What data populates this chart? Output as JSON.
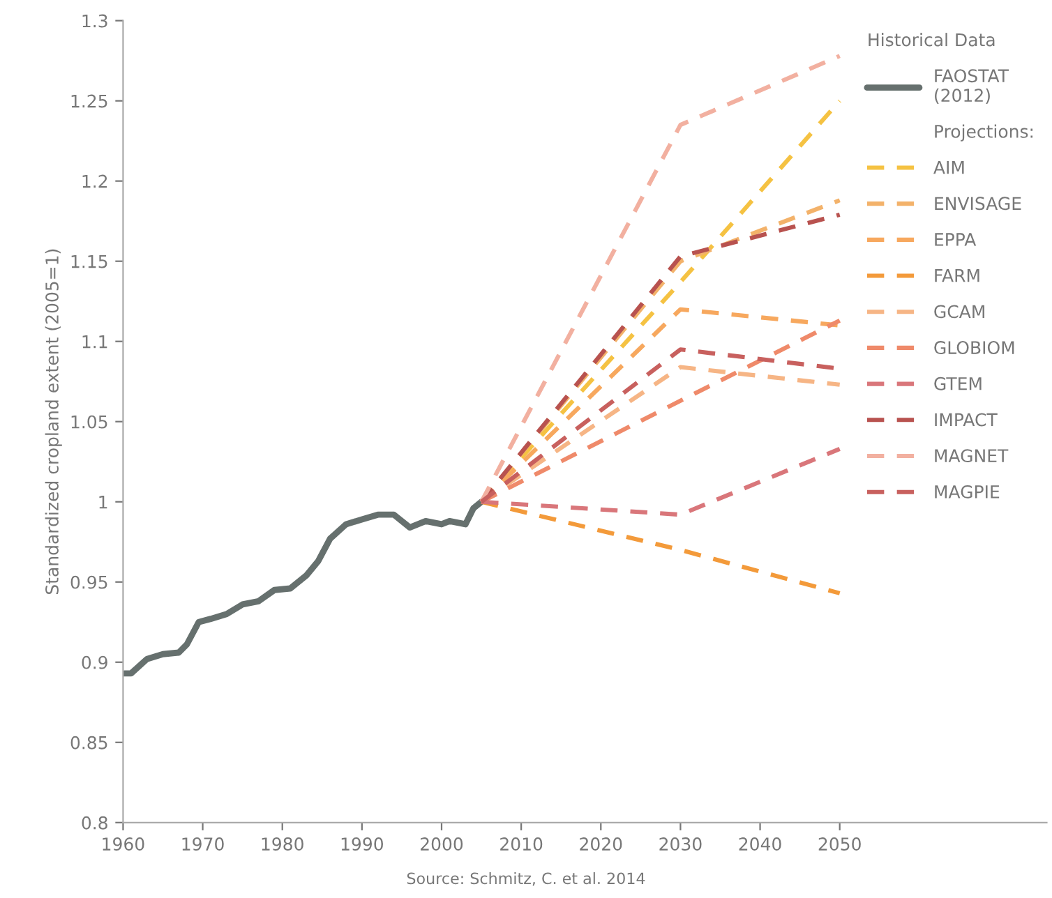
{
  "chart_data": {
    "type": "line",
    "ylabel": "Standardized cropland extent (2005=1)",
    "legend_title": "Historical Data",
    "legend": "top right",
    "grid": false,
    "marker": "none",
    "xlim": [
      1960,
      2076
    ],
    "xticks": [
      1960,
      1970,
      1980,
      1990,
      2000,
      2010,
      2020,
      2030,
      2040,
      2050
    ],
    "ylim": [
      0.8,
      1.3
    ],
    "yticks": [
      0.8,
      0.85,
      0.9,
      0.95,
      1,
      1.05,
      1.1,
      1.15,
      1.2,
      1.25,
      1.3
    ],
    "annotations": [
      "Projections:",
      "Source: Schmitz, C. et al. 2014"
    ],
    "series": [
      {
        "name": "FAOSTAT\n(2012)",
        "color": "#66706e",
        "line_style": "solid",
        "x": [
          1960.2,
          1961,
          1963,
          1965,
          1967,
          1968,
          1969.5,
          1971,
          1973,
          1975,
          1977,
          1979,
          1981,
          1983,
          1984.5,
          1986,
          1988,
          1990,
          1992,
          1994,
          1996,
          1998,
          2000,
          2001,
          2003,
          2004,
          2005
        ],
        "values": [
          0.893,
          0.893,
          0.902,
          0.905,
          0.906,
          0.911,
          0.925,
          0.927,
          0.93,
          0.936,
          0.938,
          0.945,
          0.946,
          0.954,
          0.963,
          0.977,
          0.986,
          0.989,
          0.992,
          0.992,
          0.984,
          0.988,
          0.986,
          0.988,
          0.986,
          0.996,
          1.0
        ]
      },
      {
        "name": "AIM",
        "color": "#f5c242",
        "line_style": "dashed",
        "x": [
          2005,
          2030,
          2050
        ],
        "values": [
          1.0,
          1.137,
          1.25
        ]
      },
      {
        "name": "ENVISAGE",
        "color": "#f3b26a",
        "line_style": "dashed",
        "x": [
          2005,
          2030,
          2050
        ],
        "values": [
          1.0,
          1.15,
          1.188
        ]
      },
      {
        "name": "EPPA",
        "color": "#f7a85e",
        "line_style": "dashed",
        "x": [
          2005,
          2030,
          2050
        ],
        "values": [
          1.0,
          1.12,
          1.11
        ]
      },
      {
        "name": "FARM",
        "color": "#f39a3a",
        "line_style": "dashed",
        "x": [
          2005,
          2030,
          2050
        ],
        "values": [
          1.0,
          0.97,
          0.943
        ]
      },
      {
        "name": "GCAM",
        "color": "#f6b585",
        "line_style": "dashed",
        "x": [
          2005,
          2030,
          2050
        ],
        "values": [
          1.0,
          1.084,
          1.073
        ]
      },
      {
        "name": "GLOBIOM",
        "color": "#ef8a6a",
        "line_style": "dashed",
        "x": [
          2005,
          2030,
          2050
        ],
        "values": [
          1.0,
          1.063,
          1.113
        ]
      },
      {
        "name": "GTEM",
        "color": "#d9767a",
        "line_style": "dashed",
        "x": [
          2005,
          2030,
          2050
        ],
        "values": [
          1.0,
          0.992,
          1.033
        ]
      },
      {
        "name": "IMPACT",
        "color": "#b8524f",
        "line_style": "dashed",
        "x": [
          2005,
          2030,
          2050
        ],
        "values": [
          1.0,
          1.153,
          1.179
        ]
      },
      {
        "name": "MAGNET",
        "color": "#f2b0a0",
        "line_style": "dashed",
        "x": [
          2005,
          2030,
          2050
        ],
        "values": [
          1.0,
          1.235,
          1.278
        ]
      },
      {
        "name": "MAGPIE",
        "color": "#c8605e",
        "line_style": "dashed",
        "x": [
          2005,
          2030,
          2050
        ],
        "values": [
          1.0,
          1.095,
          1.083
        ]
      }
    ]
  }
}
